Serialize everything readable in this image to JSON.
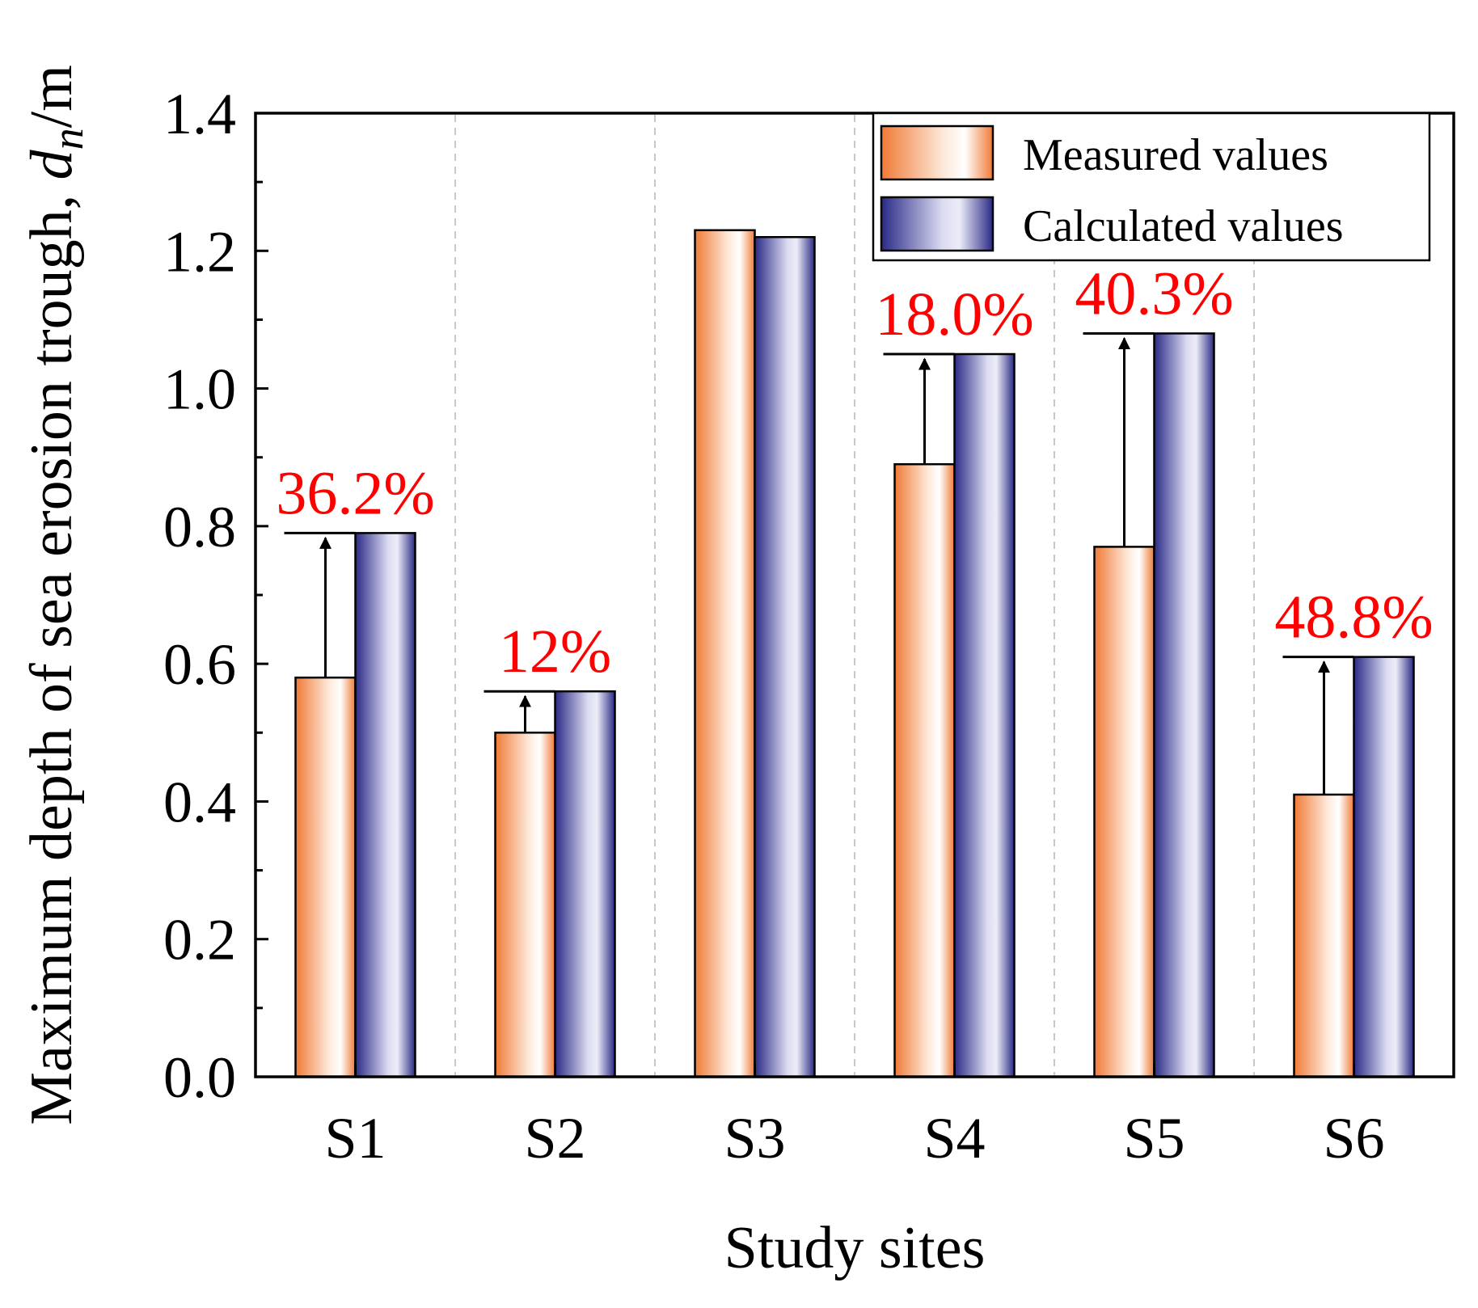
{
  "chart_data": {
    "type": "bar",
    "title": "",
    "xlabel": "Study sites",
    "ylabel": {
      "main": "Maximum depth of sea erosion trough, ",
      "symbol": "d",
      "subscript": "n",
      "unit": "/m"
    },
    "categories": [
      "S1",
      "S2",
      "S3",
      "S4",
      "S5",
      "S6"
    ],
    "ylim": [
      0,
      1.4
    ],
    "yticks": [
      "0.0",
      "0.2",
      "0.4",
      "0.6",
      "0.8",
      "1.0",
      "1.2",
      "1.4"
    ],
    "series": [
      {
        "name": "Measured values",
        "values": [
          0.58,
          0.5,
          1.23,
          0.89,
          0.77,
          0.41
        ]
      },
      {
        "name": "Calculated values",
        "values": [
          0.79,
          0.56,
          1.22,
          1.05,
          1.08,
          0.61
        ]
      }
    ],
    "annotations": [
      {
        "site": "S1",
        "text": "36.2%",
        "from": 0.58,
        "to": 0.79
      },
      {
        "site": "S2",
        "text": "12%",
        "from": 0.5,
        "to": 0.56
      },
      {
        "site": "S4",
        "text": "18.0%",
        "from": 0.89,
        "to": 1.05
      },
      {
        "site": "S5",
        "text": "40.3%",
        "from": 0.77,
        "to": 1.08
      },
      {
        "site": "S6",
        "text": "48.8%",
        "from": 0.41,
        "to": 0.61
      }
    ],
    "legend_position": "top-right",
    "grid": "vertical dashed separators"
  },
  "colors": {
    "measured_dark": "#f07a36",
    "measured_light": "#ffffff",
    "calculated_dark": "#2a2a86",
    "calculated_light": "#e8e8f6",
    "annotation": "#ff0000",
    "separator": "#c8c8c8"
  }
}
